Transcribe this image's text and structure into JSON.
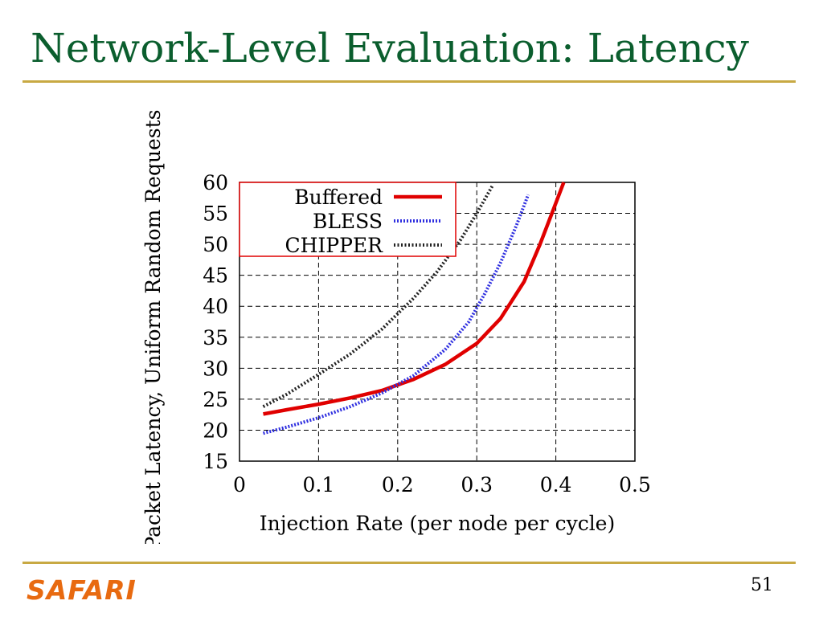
{
  "slide": {
    "title": "Network-Level Evaluation: Latency",
    "logo": "SAFARI",
    "page_number": "51"
  },
  "colors": {
    "title": "#0b5e2e",
    "rule": "#c8a943",
    "logo": "#e86a10",
    "buffered": "#e00000",
    "bless": "#3030e0",
    "chipper": "#222222",
    "legend_border": "#e00000"
  },
  "chart_data": {
    "type": "line",
    "title": "",
    "xlabel": "Injection Rate (per node per cycle)",
    "ylabel": "Packet Latency, Uniform Random Requests",
    "xlim": [
      0,
      0.5
    ],
    "ylim": [
      15,
      60
    ],
    "xticks": [
      "0",
      "0.1",
      "0.2",
      "0.3",
      "0.4",
      "0.5"
    ],
    "yticks": [
      "15",
      "20",
      "25",
      "30",
      "35",
      "40",
      "45",
      "50",
      "55",
      "60"
    ],
    "grid": true,
    "legend_position": "top-left",
    "series": [
      {
        "name": "Buffered",
        "style": "solid",
        "x": [
          0.03,
          0.06,
          0.1,
          0.14,
          0.18,
          0.22,
          0.26,
          0.3,
          0.33,
          0.36,
          0.38,
          0.395,
          0.41
        ],
        "y": [
          22.6,
          23.3,
          24.2,
          25.2,
          26.4,
          28.2,
          30.6,
          34.0,
          38.0,
          44.0,
          50.0,
          55.0,
          60.0
        ]
      },
      {
        "name": "BLESS",
        "style": "dotted",
        "x": [
          0.03,
          0.06,
          0.1,
          0.14,
          0.18,
          0.22,
          0.26,
          0.29,
          0.31,
          0.33,
          0.35,
          0.365
        ],
        "y": [
          19.5,
          20.5,
          22.0,
          23.8,
          26.0,
          28.8,
          33.0,
          37.5,
          42.0,
          47.0,
          53.0,
          58.0
        ]
      },
      {
        "name": "CHIPPER",
        "style": "dotted",
        "x": [
          0.03,
          0.06,
          0.1,
          0.14,
          0.18,
          0.22,
          0.25,
          0.28,
          0.3,
          0.32
        ],
        "y": [
          23.8,
          25.8,
          29.0,
          32.3,
          36.3,
          41.3,
          45.6,
          50.8,
          55.0,
          59.5
        ]
      }
    ]
  }
}
